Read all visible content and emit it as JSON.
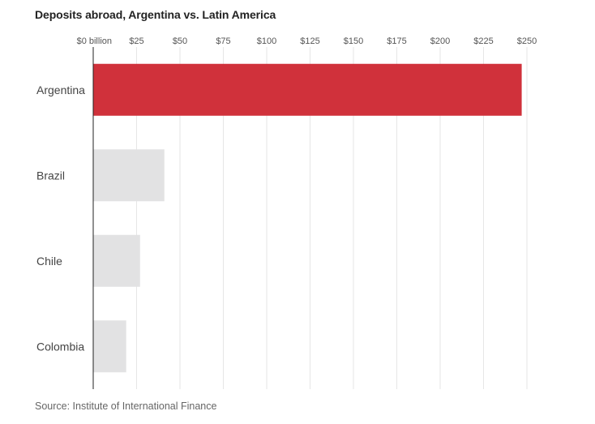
{
  "chart_data": {
    "type": "bar",
    "orientation": "horizontal",
    "title": "Deposits abroad, Argentina vs. Latin America",
    "source": "Source: Institute of International Finance",
    "categories": [
      "Argentina",
      "Brazil",
      "Chile",
      "Colombia"
    ],
    "values": [
      247,
      41,
      27,
      19
    ],
    "xlim": [
      0,
      250
    ],
    "ticks": [
      0,
      25,
      50,
      75,
      100,
      125,
      150,
      175,
      200,
      225,
      250
    ],
    "tick_labels": [
      "$0 billion",
      "$25",
      "$50",
      "$75",
      "$100",
      "$125",
      "$150",
      "$175",
      "$200",
      "$225",
      "$250"
    ],
    "highlight_color": "#d0313b",
    "base_color": "#e2e2e3",
    "grid": true
  }
}
